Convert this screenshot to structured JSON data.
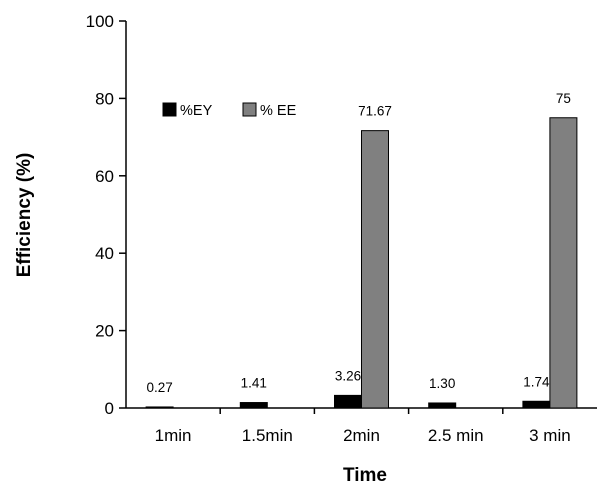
{
  "chart_data": {
    "type": "bar",
    "xlabel": "Time",
    "ylabel": "Efficiency (%)",
    "ylim": [
      0,
      100
    ],
    "yticks": [
      0,
      20,
      40,
      60,
      80,
      100
    ],
    "categories": [
      "1min",
      "1.5min",
      "2min",
      "2.5 min",
      "3 min"
    ],
    "series": [
      {
        "name": "%EY",
        "color": "#000000",
        "values": [
          0.27,
          1.41,
          3.26,
          1.3,
          1.74
        ],
        "labels": [
          "0.27",
          "1.41",
          "3.26",
          "1.30",
          "1.74"
        ]
      },
      {
        "name": "% EE",
        "color": "#808080",
        "values": [
          0,
          0,
          71.67,
          0,
          75
        ],
        "labels": [
          "",
          "",
          "71.67",
          "",
          "75"
        ]
      }
    ],
    "legend_position": "top-left",
    "grid": false
  }
}
